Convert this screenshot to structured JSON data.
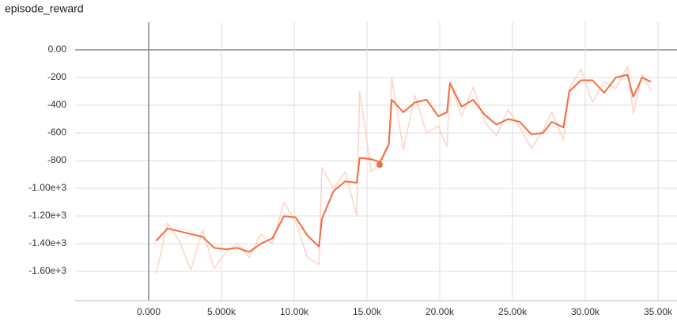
{
  "chart_data": {
    "type": "line",
    "title": "episode_reward",
    "x": [
      500,
      1300,
      2100,
      2900,
      3700,
      4500,
      5300,
      6100,
      6900,
      7700,
      8500,
      9300,
      10100,
      10900,
      11700,
      11900,
      12700,
      13500,
      14300,
      14500,
      15300,
      15900,
      16500,
      16700,
      17500,
      18300,
      19100,
      19900,
      20500,
      20700,
      21500,
      22300,
      23100,
      23900,
      24700,
      25500,
      26300,
      27100,
      27700,
      28500,
      28900,
      29700,
      30500,
      31300,
      32100,
      32900,
      33300,
      33900,
      34500
    ],
    "series": [
      {
        "color": "#fdd3c5",
        "values": [
          -1620,
          -1250,
          -1380,
          -1590,
          -1300,
          -1580,
          -1460,
          -1400,
          -1500,
          -1330,
          -1400,
          -1100,
          -1240,
          -1500,
          -1550,
          -850,
          -1000,
          -880,
          -1200,
          -300,
          -880,
          -820,
          -700,
          -200,
          -720,
          -330,
          -600,
          -550,
          -700,
          -230,
          -480,
          -270,
          -520,
          -620,
          -430,
          -560,
          -710,
          -580,
          -450,
          -650,
          -280,
          -140,
          -380,
          -230,
          -280,
          -120,
          -460,
          -180,
          -290
        ]
      },
      {
        "color": "#f36d3d",
        "values": [
          -1380,
          -1290,
          -1310,
          -1330,
          -1350,
          -1430,
          -1440,
          -1430,
          -1460,
          -1400,
          -1360,
          -1200,
          -1210,
          -1340,
          -1420,
          -1220,
          -1020,
          -950,
          -960,
          -780,
          -790,
          -810,
          -680,
          -360,
          -450,
          -380,
          -360,
          -480,
          -450,
          -240,
          -410,
          -360,
          -470,
          -540,
          -500,
          -520,
          -610,
          -600,
          -520,
          -560,
          -300,
          -220,
          -220,
          -310,
          -200,
          -180,
          -340,
          -200,
          -230
        ]
      }
    ],
    "marker": {
      "x": 15870,
      "y": -829
    },
    "xlim": [
      -5054,
      36304
    ],
    "xticks": [
      {
        "value": 0,
        "label": "0.000"
      },
      {
        "value": 5000,
        "label": "5.000k"
      },
      {
        "value": 10000,
        "label": "10.00k"
      },
      {
        "value": 15000,
        "label": "15.00k"
      },
      {
        "value": 20000,
        "label": "20.00k"
      },
      {
        "value": 25000,
        "label": "25.00k"
      },
      {
        "value": 30000,
        "label": "30.00k"
      },
      {
        "value": 35000,
        "label": "35.00k"
      }
    ],
    "ylim": [
      -1811,
      200
    ],
    "yticks": [
      {
        "value": 0,
        "label": "0.00"
      },
      -200,
      -400,
      -600,
      -800,
      {
        "value": -1000,
        "label": "-1.00e+3"
      },
      {
        "value": -1200,
        "label": "-1.20e+3"
      },
      {
        "value": -1400,
        "label": "-1.40e+3"
      },
      {
        "value": -1600,
        "label": "-1.60e+3"
      }
    ],
    "grid": true
  }
}
